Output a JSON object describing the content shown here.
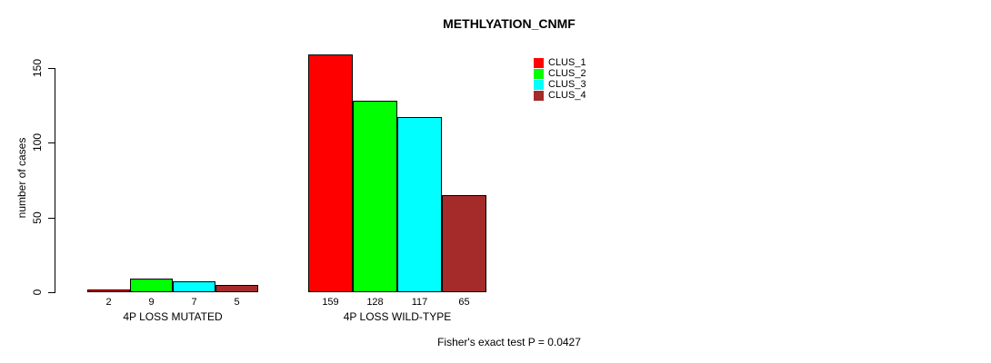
{
  "chart_data": {
    "type": "bar",
    "title": "METHLYATION_CNMF",
    "xlabel": "",
    "ylabel": "number of cases",
    "ylim": [
      0,
      165
    ],
    "yticks": [
      0,
      50,
      100,
      150
    ],
    "grid": false,
    "legend_position": "top-right-inside",
    "categories": [
      "4P LOSS MUTATED",
      "4P LOSS WILD-TYPE"
    ],
    "series": [
      {
        "name": "CLUS_1",
        "color": "#FF0000",
        "values": [
          2,
          159
        ]
      },
      {
        "name": "CLUS_2",
        "color": "#00FF00",
        "values": [
          9,
          128
        ]
      },
      {
        "name": "CLUS_3",
        "color": "#00FFFF",
        "values": [
          7,
          117
        ]
      },
      {
        "name": "CLUS_4",
        "color": "#A52A2A",
        "values": [
          5,
          65
        ]
      }
    ],
    "bar_value_labels_shown": true,
    "annotation": "Fisher's exact test P = 0.0427"
  }
}
